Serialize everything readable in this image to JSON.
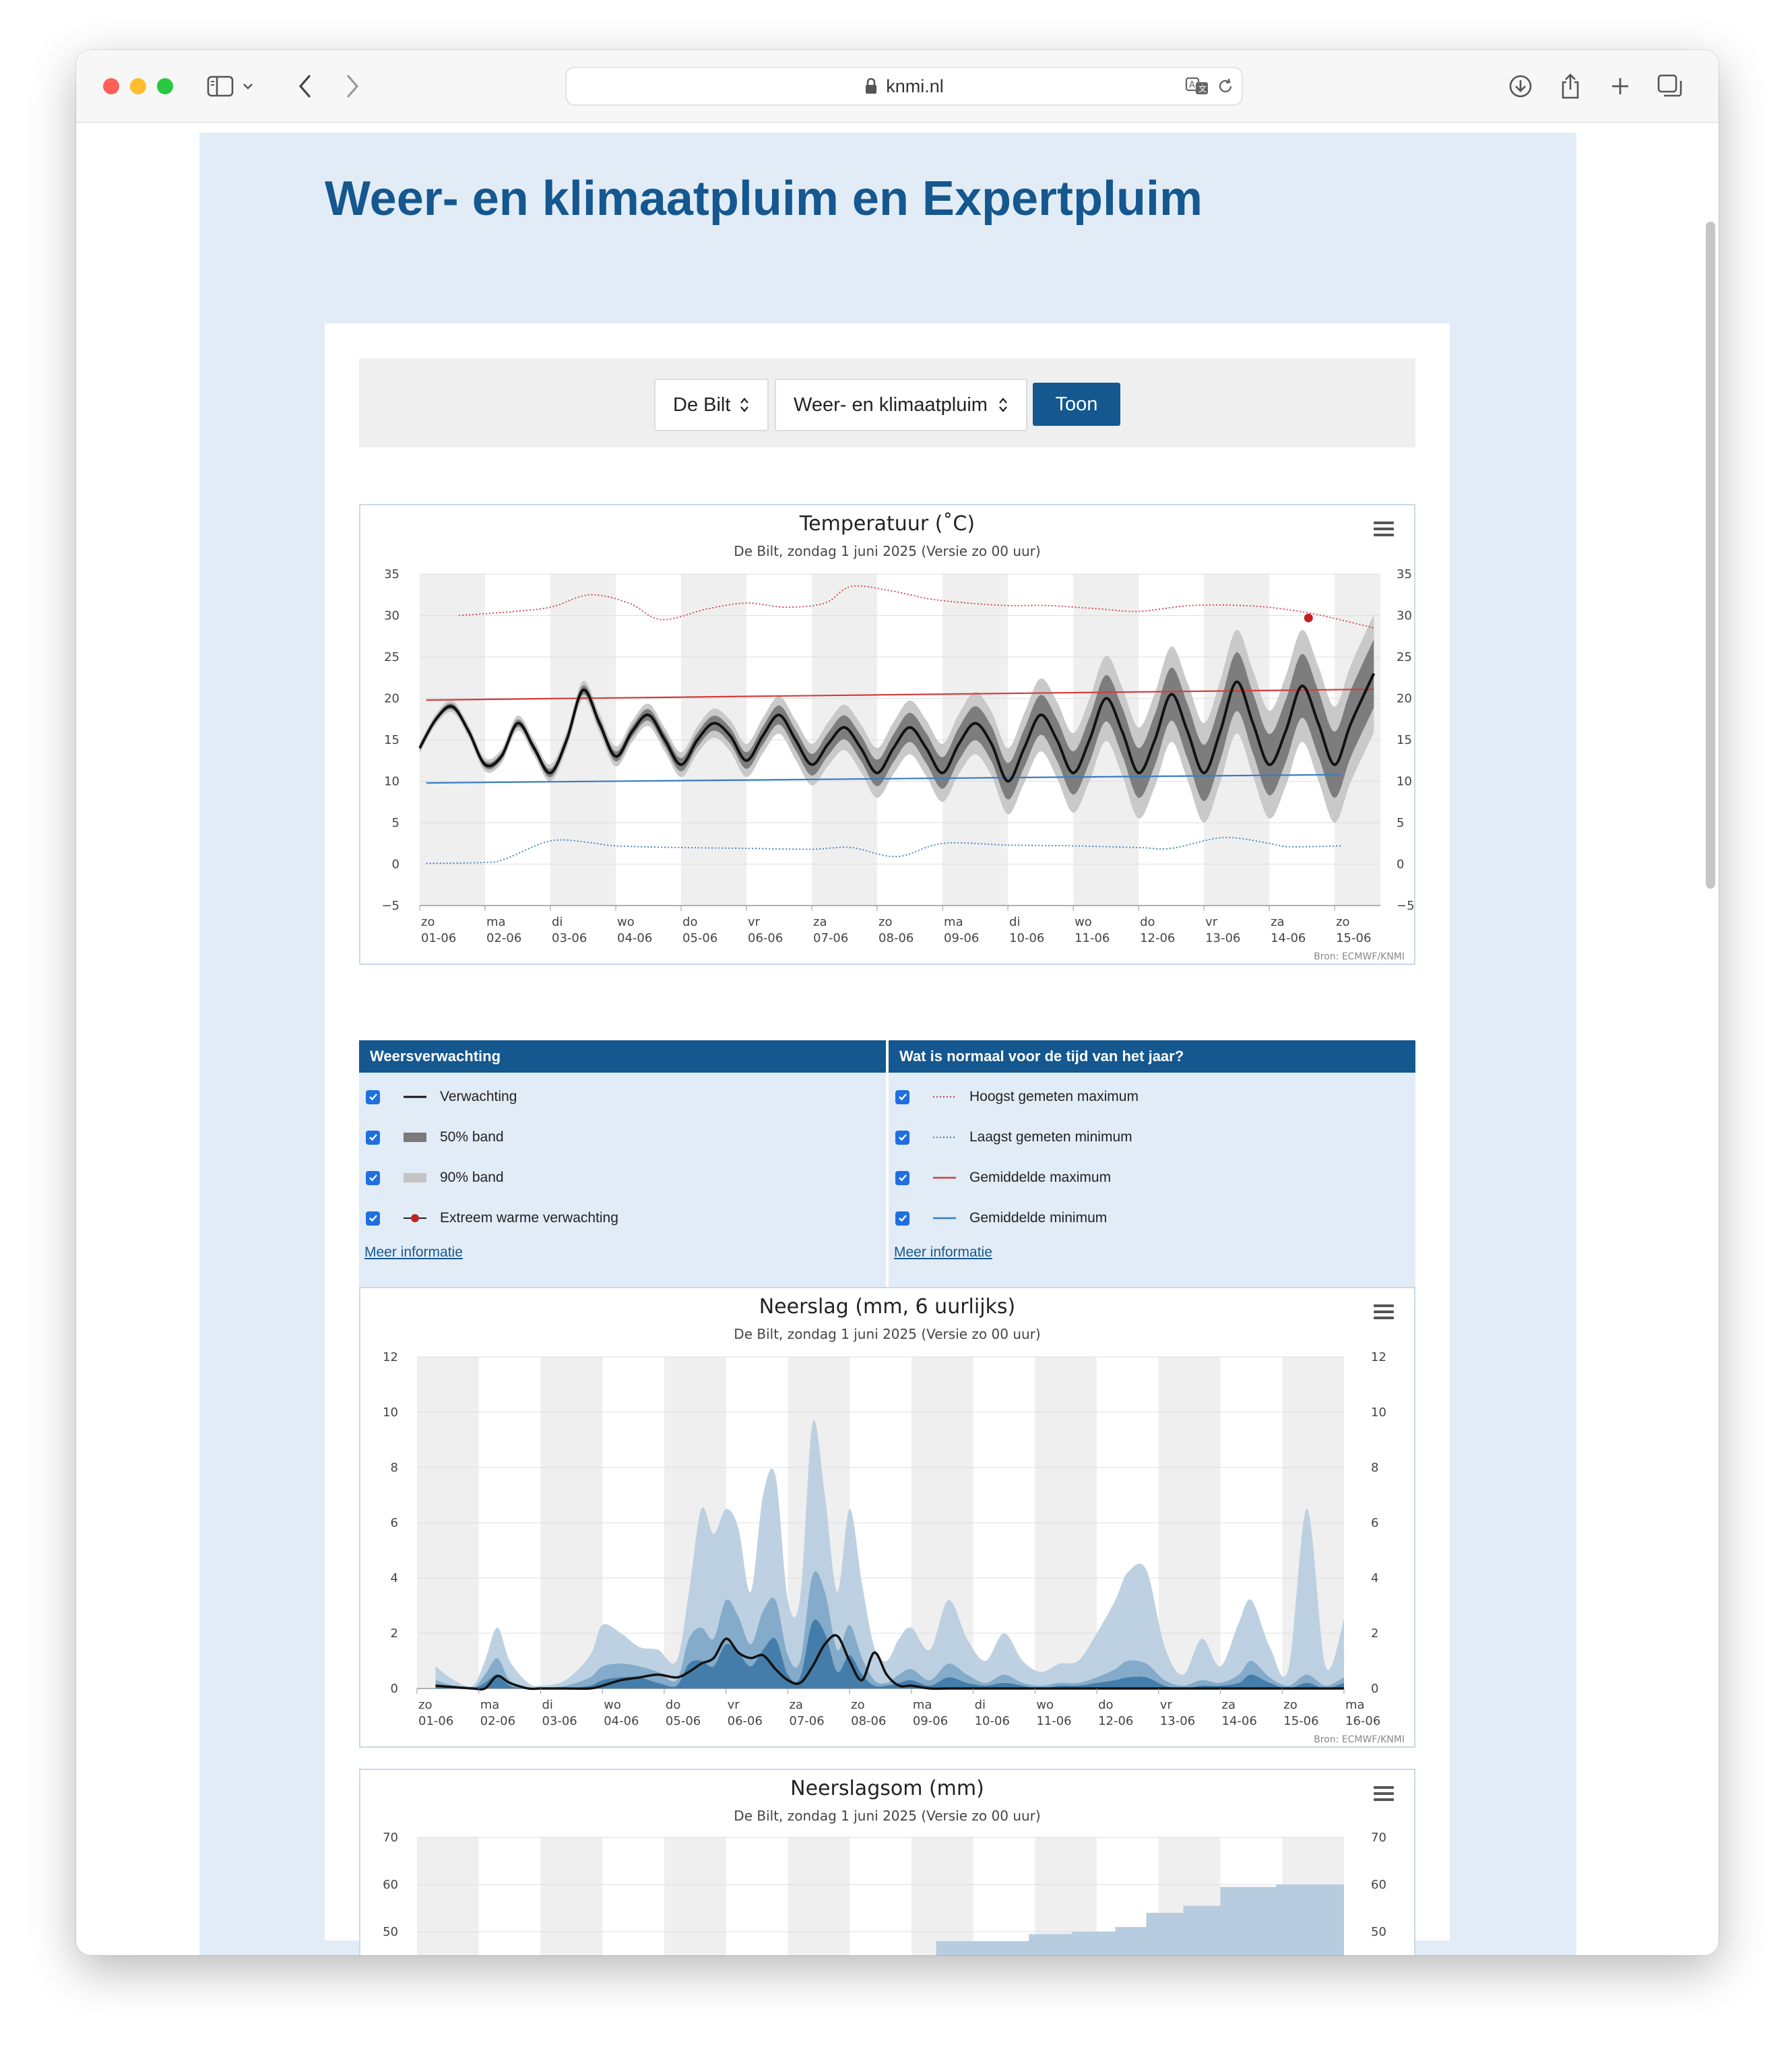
{
  "browser": {
    "url": "knmi.nl"
  },
  "page": {
    "title": "Weer- en klimaatpluim en Expertpluim",
    "location_select": "De Bilt",
    "type_select": "Weer- en klimaatpluim",
    "submit_label": "Toon"
  },
  "colors": {
    "brand": "#15578f",
    "panel": "#e2ecf6",
    "record_max": "#d23c3c",
    "record_min": "#3a7cc0",
    "band90": "#c4c4c4",
    "band50": "#7a7a7a",
    "precip_light": "#b7cddf",
    "precip_mid": "#7fa7c7",
    "precip_dark": "#3f78a6"
  },
  "legend": {
    "left": {
      "header": "Weersverwachting",
      "items": [
        {
          "label": "Verwachting",
          "icon": "black-line-icon",
          "checked": true
        },
        {
          "label": "50% band",
          "icon": "dark-band-icon",
          "checked": true
        },
        {
          "label": "90% band",
          "icon": "light-band-icon",
          "checked": true
        },
        {
          "label": "Extreem warme verwachting",
          "icon": "red-dot-line-icon",
          "checked": true
        }
      ],
      "more": "Meer informatie"
    },
    "right": {
      "header": "Wat is normaal voor de tijd van het jaar?",
      "items": [
        {
          "label": "Hoogst gemeten maximum",
          "icon": "red-dotted-line-icon",
          "checked": true
        },
        {
          "label": "Laagst gemeten minimum",
          "icon": "blue-dotted-line-icon",
          "checked": true
        },
        {
          "label": "Gemiddelde maximum",
          "icon": "red-line-icon",
          "checked": true
        },
        {
          "label": "Gemiddelde minimum",
          "icon": "blue-line-icon",
          "checked": true
        }
      ],
      "more": "Meer informatie"
    }
  },
  "chart_data": [
    {
      "type": "line",
      "title": "Temperatuur (˚C)",
      "subtitle": "De Bilt, zondag 1 juni 2025 (Versie zo 00 uur)",
      "source": "Bron: ECMWF/KNMI",
      "ylim": [
        -5,
        35
      ],
      "yticks": [
        35,
        30,
        25,
        20,
        15,
        10,
        5,
        0,
        -5
      ],
      "categories": [
        [
          "zo",
          "01-06"
        ],
        [
          "ma",
          "02-06"
        ],
        [
          "di",
          "03-06"
        ],
        [
          "wo",
          "04-06"
        ],
        [
          "do",
          "05-06"
        ],
        [
          "vr",
          "06-06"
        ],
        [
          "za",
          "07-06"
        ],
        [
          "zo",
          "08-06"
        ],
        [
          "ma",
          "09-06"
        ],
        [
          "di",
          "10-06"
        ],
        [
          "wo",
          "11-06"
        ],
        [
          "do",
          "12-06"
        ],
        [
          "vr",
          "13-06"
        ],
        [
          "za",
          "14-06"
        ],
        [
          "zo",
          "15-06"
        ]
      ],
      "x_range_days": [
        0,
        14.7
      ],
      "series": [
        {
          "name": "Verwachting",
          "color": "#111111",
          "x": [
            0,
            0.25,
            0.5,
            0.75,
            1.0,
            1.25,
            1.5,
            1.75,
            2.0,
            2.25,
            2.5,
            2.75,
            3.0,
            3.25,
            3.5,
            3.75,
            4.0,
            4.25,
            4.5,
            4.75,
            5.0,
            5.25,
            5.5,
            5.75,
            6.0,
            6.25,
            6.5,
            6.75,
            7.0,
            7.25,
            7.5,
            7.75,
            8.0,
            8.25,
            8.5,
            8.75,
            9.0,
            9.25,
            9.5,
            9.75,
            10.0,
            10.25,
            10.5,
            10.75,
            11.0,
            11.25,
            11.5,
            11.75,
            12.0,
            12.25,
            12.5,
            12.75,
            13.0,
            13.25,
            13.5,
            13.75,
            14.0,
            14.25,
            14.6
          ],
          "y": [
            14,
            17.5,
            19,
            16,
            12,
            13,
            17,
            14,
            11,
            15,
            21,
            17,
            13,
            16,
            18,
            15,
            12,
            15,
            17,
            15.5,
            12.5,
            15.5,
            18,
            15,
            12,
            14.5,
            16.5,
            14,
            11,
            14,
            16.5,
            14,
            11,
            14.5,
            17,
            14.5,
            10,
            14,
            18,
            15,
            11,
            15,
            20,
            16,
            11,
            15,
            20.5,
            16,
            11,
            16,
            22,
            17,
            12,
            16,
            21.5,
            17,
            12,
            17,
            23
          ]
        },
        {
          "name": "Hoogst gemeten maximum",
          "color": "#d23c3c",
          "dashed": true,
          "x": [
            0.6,
            1.3,
            2.0,
            2.6,
            3.2,
            3.7,
            4.4,
            5.0,
            5.6,
            6.2,
            6.6,
            7.2,
            7.8,
            8.4,
            9.0,
            9.6,
            10.4,
            11.0,
            11.8,
            12.6,
            13.2,
            13.8,
            14.6
          ],
          "y": [
            30,
            30.4,
            31,
            32.5,
            31.5,
            29.5,
            30.8,
            31.5,
            31,
            31.5,
            33.5,
            33,
            32,
            31.5,
            31.2,
            31.2,
            30.8,
            30.5,
            31.2,
            31.2,
            30.8,
            30,
            28.5
          ]
        },
        {
          "name": "Laagst gemeten minimum",
          "color": "#3a7cc0",
          "dashed": true,
          "x": [
            0.1,
            1.0,
            1.3,
            2.0,
            2.6,
            3.0,
            4.0,
            5.0,
            6.0,
            6.6,
            7.3,
            8.0,
            9.0,
            10.0,
            11.0,
            11.5,
            12.3,
            13.0,
            13.3,
            14.1
          ],
          "y": [
            0.1,
            0.2,
            0.6,
            2.8,
            2.6,
            2.2,
            2.0,
            1.9,
            1.8,
            2.0,
            0.9,
            2.5,
            2.3,
            2.2,
            2.0,
            1.9,
            3.2,
            2.5,
            2.1,
            2.2
          ]
        },
        {
          "name": "Gemiddelde maximum",
          "color": "#d23c3c",
          "x": [
            0.1,
            14.6
          ],
          "y": [
            19.8,
            21.1
          ]
        },
        {
          "name": "Gemiddelde minimum",
          "color": "#3a7cc0",
          "x": [
            0.1,
            14.1
          ],
          "y": [
            9.8,
            10.8
          ]
        },
        {
          "name": "Extreem warme verwachting",
          "color": "#c32121",
          "type": "scatter",
          "x": [
            13.6
          ],
          "y": [
            29.7
          ]
        }
      ],
      "bands": {
        "spread90_by_day": [
          0.6,
          0.8,
          1.0,
          1.2,
          1.5,
          2.0,
          2.5,
          3.0,
          3.5,
          4.0,
          4.8,
          5.5,
          6.0,
          6.5,
          7.0,
          7.2
        ],
        "spread50_by_day": [
          0.3,
          0.4,
          0.5,
          0.6,
          0.8,
          1.0,
          1.3,
          1.6,
          1.9,
          2.2,
          2.6,
          3.0,
          3.4,
          3.7,
          4.0,
          4.2
        ]
      }
    },
    {
      "type": "area",
      "title": "Neerslag (mm, 6 uurlijks)",
      "subtitle": "De Bilt, zondag 1 juni 2025 (Versie zo 00 uur)",
      "source": "Bron: ECMWF/KNMI",
      "ylim": [
        0,
        12
      ],
      "yticks": [
        12,
        10,
        8,
        6,
        4,
        2,
        0
      ],
      "categories": [
        [
          "zo",
          "01-06"
        ],
        [
          "ma",
          "02-06"
        ],
        [
          "di",
          "03-06"
        ],
        [
          "wo",
          "04-06"
        ],
        [
          "do",
          "05-06"
        ],
        [
          "vr",
          "06-06"
        ],
        [
          "za",
          "07-06"
        ],
        [
          "zo",
          "08-06"
        ],
        [
          "ma",
          "09-06"
        ],
        [
          "di",
          "10-06"
        ],
        [
          "wo",
          "11-06"
        ],
        [
          "do",
          "12-06"
        ],
        [
          "vr",
          "13-06"
        ],
        [
          "za",
          "14-06"
        ],
        [
          "zo",
          "15-06"
        ],
        [
          "ma",
          "16-06"
        ]
      ],
      "x_range_days": [
        0,
        15
      ],
      "x": [
        0.3,
        0.6,
        0.9,
        1.1,
        1.3,
        1.5,
        1.8,
        2.0,
        2.4,
        2.8,
        3.0,
        3.3,
        3.6,
        3.9,
        4.2,
        4.4,
        4.6,
        4.8,
        5.0,
        5.2,
        5.4,
        5.6,
        5.8,
        6.0,
        6.2,
        6.4,
        6.6,
        6.8,
        7.0,
        7.2,
        7.4,
        7.6,
        7.8,
        8.0,
        8.3,
        8.6,
        8.9,
        9.2,
        9.5,
        9.8,
        10.1,
        10.4,
        10.7,
        11.0,
        11.3,
        11.5,
        11.8,
        12.1,
        12.4,
        12.7,
        13.0,
        13.3,
        13.5,
        13.8,
        14.1,
        14.4,
        14.7,
        15.0
      ],
      "p90": [
        0.8,
        0.3,
        0.1,
        1.0,
        2.2,
        1.0,
        0.2,
        0.1,
        0.3,
        1.2,
        2.3,
        2.0,
        1.5,
        1.4,
        1.0,
        3.5,
        6.5,
        5.6,
        6.5,
        5.8,
        3.5,
        7.0,
        7.7,
        3.2,
        3.3,
        9.6,
        7.0,
        3.5,
        6.5,
        3.8,
        1.5,
        1.0,
        1.8,
        2.2,
        1.4,
        3.2,
        1.8,
        1.0,
        2.0,
        1.0,
        0.6,
        0.9,
        1.0,
        2.0,
        3.2,
        4.2,
        4.3,
        1.5,
        0.5,
        1.8,
        0.8,
        2.4,
        3.2,
        1.5,
        0.7,
        6.5,
        0.8,
        2.5
      ],
      "p50": [
        0.3,
        0.1,
        0.0,
        0.5,
        1.1,
        0.3,
        0.0,
        0.0,
        0.1,
        0.4,
        0.8,
        0.9,
        0.8,
        0.6,
        0.3,
        1.8,
        2.2,
        1.8,
        3.2,
        2.6,
        1.6,
        2.8,
        3.2,
        1.2,
        1.0,
        4.1,
        3.5,
        1.4,
        2.3,
        1.1,
        0.3,
        0.2,
        0.5,
        0.7,
        0.3,
        0.9,
        0.5,
        0.2,
        0.5,
        0.2,
        0.1,
        0.2,
        0.2,
        0.4,
        0.7,
        1.0,
        0.9,
        0.3,
        0.1,
        0.3,
        0.2,
        0.5,
        1.0,
        0.4,
        0.1,
        0.5,
        0.1,
        0.4
      ],
      "p25": [
        0.1,
        0.0,
        0.0,
        0.2,
        0.5,
        0.1,
        0.0,
        0.0,
        0.0,
        0.1,
        0.3,
        0.4,
        0.4,
        0.2,
        0.1,
        0.9,
        1.0,
        0.8,
        1.6,
        1.3,
        0.8,
        1.4,
        1.8,
        0.5,
        0.4,
        2.4,
        2.0,
        0.6,
        1.2,
        0.5,
        0.1,
        0.1,
        0.2,
        0.3,
        0.1,
        0.4,
        0.2,
        0.1,
        0.2,
        0.1,
        0.0,
        0.1,
        0.1,
        0.2,
        0.3,
        0.4,
        0.4,
        0.1,
        0.0,
        0.1,
        0.1,
        0.2,
        0.5,
        0.2,
        0.0,
        0.2,
        0.0,
        0.2
      ],
      "median": [
        0.1,
        0.05,
        0.0,
        0.0,
        0.45,
        0.2,
        0.0,
        0.0,
        0.0,
        0.0,
        0.1,
        0.3,
        0.4,
        0.5,
        0.4,
        0.6,
        0.9,
        1.1,
        1.8,
        1.3,
        1.1,
        1.2,
        0.7,
        0.3,
        0.2,
        0.8,
        1.6,
        1.9,
        1.0,
        0.3,
        1.3,
        0.5,
        0.1,
        0.1,
        0.0,
        0.0,
        0.0,
        0.0,
        0.0,
        0.0,
        0.0,
        0.0,
        0.0,
        0.0,
        0.0,
        0.0,
        0.0,
        0.0,
        0.0,
        0.0,
        0.0,
        0.0,
        0.0,
        0.0,
        0.0,
        0.0,
        0.0,
        0.0
      ]
    },
    {
      "type": "area",
      "title": "Neerslagsom (mm)",
      "subtitle": "De Bilt, zondag 1 juni 2025 (Versie zo 00 uur)",
      "ylim": [
        0,
        70
      ],
      "yticks": [
        70,
        60,
        50
      ],
      "x_range_days": [
        0,
        15
      ],
      "x": [
        7.9,
        8.4,
        9.2,
        9.9,
        10.6,
        11.3,
        11.8,
        12.4,
        13.0,
        13.9,
        14.6
      ],
      "p90": [
        45,
        48,
        48,
        49.5,
        50,
        51,
        54,
        55.5,
        59.5,
        60,
        60
      ]
    }
  ]
}
